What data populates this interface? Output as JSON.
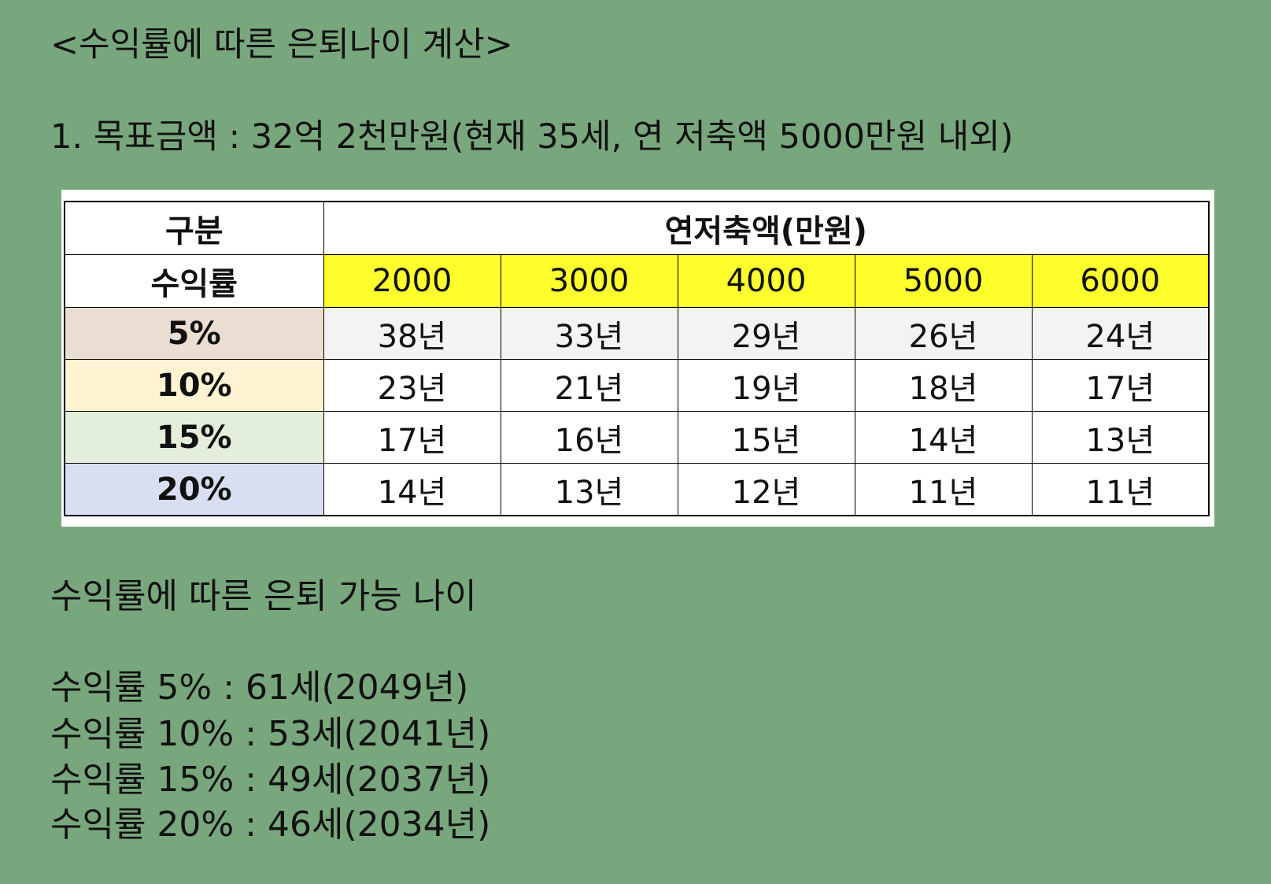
{
  "title": "<수익률에 따른 은퇴나이 계산>",
  "goal": "1. 목표금액 : 32억 2천만원(현재 35세, 연 저축액 5000만원 내외)",
  "table": {
    "corner_top": "구분",
    "corner_bottom": "수익률",
    "savings_header": "연저축액(만원)",
    "amounts": [
      "2000",
      "3000",
      "4000",
      "5000",
      "6000"
    ],
    "rows": [
      {
        "rate": "5%",
        "values": [
          "38년",
          "33년",
          "29년",
          "26년",
          "24년"
        ]
      },
      {
        "rate": "10%",
        "values": [
          "23년",
          "21년",
          "19년",
          "18년",
          "17년"
        ]
      },
      {
        "rate": "15%",
        "values": [
          "17년",
          "16년",
          "15년",
          "14년",
          "13년"
        ]
      },
      {
        "rate": "20%",
        "values": [
          "14년",
          "13년",
          "12년",
          "11년",
          "11년"
        ]
      }
    ]
  },
  "subtitle": "수익률에 따른 은퇴 가능 나이",
  "results": [
    "수익률 5% : 61세(2049년)",
    "수익률 10% : 53세(2041년)",
    "수익률 15% : 49세(2037년)",
    "수익률 20% : 46세(2034년)"
  ],
  "colors": {
    "background": "#79a77d",
    "amount_header": "#ffff2e",
    "rate_5": "#eaddd1",
    "rate_10": "#fff3d2",
    "rate_15": "#e4efdb",
    "rate_20": "#d9dff3"
  }
}
